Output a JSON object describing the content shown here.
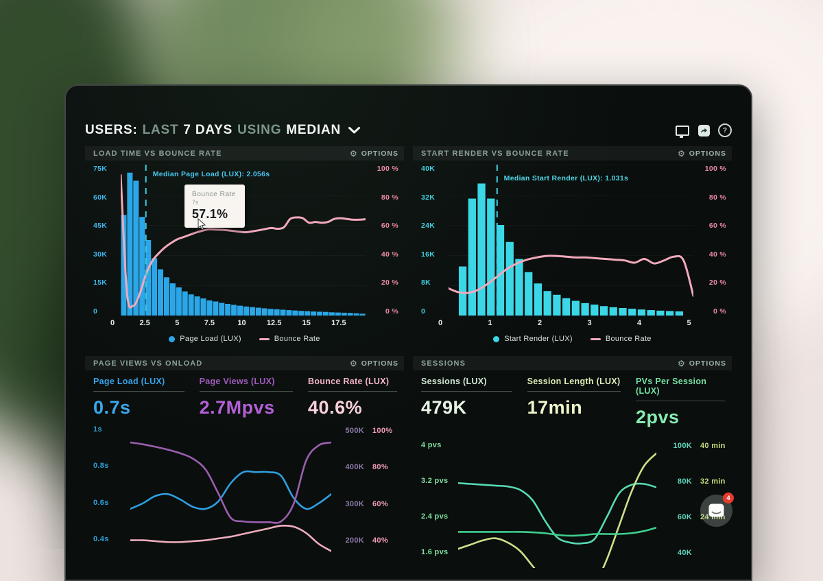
{
  "header": {
    "segments": [
      "USERS:",
      "LAST",
      "7 DAYS",
      "USING",
      "MEDIAN"
    ]
  },
  "ui": {
    "gear_glyph": "⚙",
    "help_glyph": "?"
  },
  "widgets": {
    "chat_badge": "4"
  },
  "panels": [
    {
      "title": "LOAD TIME VS BOUNCE RATE",
      "options": "OPTIONS"
    },
    {
      "title": "START RENDER VS BOUNCE RATE",
      "options": "OPTIONS"
    },
    {
      "title": "PAGE VIEWS VS ONLOAD",
      "options": "OPTIONS",
      "metrics": [
        {
          "label": "Page Load (LUX)",
          "value": "0.7s",
          "label_color": "#37a3e8",
          "value_color": "#39a8ec"
        },
        {
          "label": "Page Views (LUX)",
          "value": "2.7Mpvs",
          "label_color": "#a05bbc",
          "value_color": "#b35fd6"
        },
        {
          "label": "Bounce Rate (LUX)",
          "value": "40.6%",
          "label_color": "#f2b3c5",
          "value_color": "#f8d0da"
        }
      ]
    },
    {
      "title": "SESSIONS",
      "options": "OPTIONS",
      "metrics": [
        {
          "label": "Sessions (LUX)",
          "value": "479K",
          "label_color": "#cfe7d2",
          "value_color": "#e7f4e3"
        },
        {
          "label": "Session Length (LUX)",
          "value": "17min",
          "label_color": "#dcedb6",
          "value_color": "#eff7ca"
        },
        {
          "label": "PVs Per Session (LUX)",
          "value": "2pvs",
          "label_color": "#74e0a2",
          "value_color": "#87eab0"
        }
      ]
    }
  ],
  "chart_data": [
    {
      "type": "combo_bar_line",
      "title": "LOAD TIME VS BOUNCE RATE",
      "xlim": [
        0,
        20
      ],
      "x_ticks": [
        {
          "v": 0,
          "label": "0"
        },
        {
          "v": 2.5,
          "label": "2.5"
        },
        {
          "v": 5,
          "label": "5"
        },
        {
          "v": 7.5,
          "label": "7.5"
        },
        {
          "v": 10,
          "label": "10"
        },
        {
          "v": 12.5,
          "label": "12.5"
        },
        {
          "v": 15,
          "label": "15"
        },
        {
          "v": 17.5,
          "label": "17.5"
        }
      ],
      "left_axis": {
        "ticks": [
          "75K",
          "60K",
          "45K",
          "30K",
          "15K",
          "0"
        ],
        "max_k": 75,
        "color": "#3db4ea"
      },
      "right_axis": {
        "ticks": [
          "100 %",
          "80 %",
          "60 %",
          "40 %",
          "20 %",
          "0 %"
        ],
        "range": [
          0,
          100
        ],
        "color": "#ef8ba6"
      },
      "bars": {
        "name": "Page Load (LUX)",
        "color": "#2ba7e8",
        "x_start": 0,
        "bin_width": 0.5,
        "gap": 0.1,
        "values_k": [
          50,
          71,
          67,
          49,
          37.5,
          28.5,
          23,
          19,
          16,
          14,
          12,
          10.5,
          9.5,
          8.5,
          7.5,
          7,
          6.3,
          5.8,
          5.3,
          4.9,
          4.5,
          4.2,
          3.9,
          3.6,
          3.3,
          3.1,
          2.9,
          2.7,
          2.5,
          2.3,
          2.2,
          2,
          1.9,
          1.8,
          1.6,
          1.5,
          1.4,
          1.3,
          1.1,
          0.9
        ]
      },
      "line": {
        "name": "Bounce Rate",
        "color": "#f2a9bc",
        "width": 3,
        "range": [
          0,
          100
        ],
        "values": [
          93,
          15,
          6.5,
          14,
          27,
          36,
          41,
          45,
          48,
          50.5,
          52,
          53.5,
          55,
          56.2,
          57.1,
          57,
          56.8,
          56.5,
          56,
          55.5,
          55.2,
          55.8,
          56.5,
          57.3,
          58,
          57.5,
          58.5,
          64,
          65,
          64.5,
          61.5,
          62,
          61.5,
          62,
          64,
          64.5,
          64,
          63.5,
          63.5,
          63.8
        ]
      },
      "median_marker": {
        "label": "Median Page Load (LUX): 2.056s",
        "value": 2.056,
        "color": "#3fd0e8"
      },
      "tooltip": {
        "series": "Bounce Rate",
        "x": "7s",
        "value": "57.1%"
      },
      "legend": [
        {
          "label": "Page Load (LUX)",
          "color": "#2ba7e8",
          "shape": "dot"
        },
        {
          "label": "Bounce Rate",
          "color": "#f2a9bc",
          "shape": "line"
        }
      ]
    },
    {
      "type": "combo_bar_line",
      "title": "START RENDER VS BOUNCE RATE",
      "xlim": [
        0,
        5.2
      ],
      "x_ticks": [
        {
          "v": 0,
          "label": "0"
        },
        {
          "v": 1,
          "label": "1"
        },
        {
          "v": 2,
          "label": "2"
        },
        {
          "v": 3,
          "label": "3"
        },
        {
          "v": 4,
          "label": "4"
        },
        {
          "v": 5,
          "label": "5"
        }
      ],
      "left_axis": {
        "ticks": [
          "40K",
          "32K",
          "24K",
          "16K",
          "8K",
          "0"
        ],
        "max_k": 40,
        "color": "#3fd0e0"
      },
      "right_axis": {
        "ticks": [
          "100 %",
          "80 %",
          "60 %",
          "40 %",
          "20 %",
          "0 %"
        ],
        "range": [
          0,
          100
        ],
        "color": "#ef8ba6"
      },
      "bars": {
        "name": "Start Render (LUX)",
        "color": "#3cd7e6",
        "x_start": 0.2,
        "bin_width": 0.2,
        "gap": 0.18,
        "values_k": [
          13,
          31,
          35,
          31,
          24,
          19.5,
          15,
          11.5,
          8.5,
          6.5,
          5.5,
          4.6,
          3.9,
          3.3,
          2.9,
          2.5,
          2.2,
          2,
          1.8,
          1.6,
          1.45,
          1.3,
          1.2,
          1.1
        ]
      },
      "line": {
        "name": "Bounce Rate",
        "color": "#f2a9bc",
        "width": 3,
        "range": [
          0,
          100
        ],
        "values": [
          18,
          15.5,
          15,
          17,
          21,
          26,
          31,
          34.5,
          37,
          38.5,
          39.5,
          39.5,
          39,
          38.5,
          38.5,
          38,
          37.5,
          37,
          36.5,
          35,
          37.5,
          34.5,
          36.5,
          39,
          36.5,
          13
        ]
      },
      "median_marker": {
        "label": "Median Start Render (LUX): 1.031s",
        "value": 1.031,
        "color": "#3fd0e8"
      },
      "legend": [
        {
          "label": "Start Render (LUX)",
          "color": "#3cd7e6",
          "shape": "dot"
        },
        {
          "label": "Bounce Rate",
          "color": "#f2a9bc",
          "shape": "line"
        }
      ]
    },
    {
      "type": "line",
      "title": "PAGE VIEWS VS ONLOAD",
      "left_axis": {
        "ticks": [
          "1s",
          "0.8s",
          "0.6s",
          "0.4s"
        ],
        "color": "#2f9fd8"
      },
      "right_axis": {
        "ticks": [
          [
            "500K",
            "100%"
          ],
          [
            "400K",
            "80%"
          ],
          [
            "300K",
            "60%"
          ],
          [
            "200K",
            "40%"
          ]
        ],
        "k_color": "#8d7aa8",
        "p_color": "#ef9cb6"
      },
      "series": [
        {
          "name": "Page Load (LUX)",
          "unit": "s",
          "color": "#2f9fe0",
          "width": 2.6,
          "range": [
            0.33,
            1.07
          ],
          "values": [
            0.6,
            0.63,
            0.67,
            0.68,
            0.65,
            0.61,
            0.6,
            0.64,
            0.74,
            0.8,
            0.8,
            0.8,
            0.78,
            0.66,
            0.6,
            0.63,
            0.68
          ]
        },
        {
          "name": "Page Views (LUX)",
          "unit": "K pvs",
          "color": "#9a5fae",
          "width": 2.6,
          "range": [
            150,
            525
          ],
          "values": [
            470,
            465,
            458,
            450,
            440,
            425,
            395,
            330,
            262,
            252,
            250,
            250,
            252,
            300,
            420,
            462,
            470
          ]
        },
        {
          "name": "Bounce Rate (LUX)",
          "unit": "%",
          "color": "#eeadbd",
          "width": 2.6,
          "range": [
            30,
            105
          ],
          "values": [
            40,
            40,
            39.5,
            39,
            39,
            39.5,
            40,
            41,
            42,
            43.5,
            45,
            46.5,
            48,
            47.5,
            44,
            38,
            34
          ]
        }
      ]
    },
    {
      "type": "line",
      "title": "SESSIONS",
      "left_axis": {
        "ticks": [
          "4 pvs",
          "3.2 pvs",
          "2.4 pvs",
          "1.6 pvs"
        ],
        "color": "#7fe0a0"
      },
      "right_axis": {
        "ticks": [
          [
            "100K",
            "40 min"
          ],
          [
            "80K",
            "32 min"
          ],
          [
            "60K",
            "24 min"
          ],
          [
            "40K",
            ""
          ]
        ],
        "k_color": "#5fd3ba",
        "p_color": "#c6e07e"
      },
      "series": [
        {
          "name": "Sessions (LUX)",
          "unit": "K",
          "color": "#57d9b4",
          "width": 2.6,
          "range": [
            30,
            110
          ],
          "values": [
            80,
            79.5,
            79,
            78.5,
            78,
            76,
            70,
            58,
            48,
            45,
            44.5,
            47,
            60,
            74,
            79,
            79.5,
            77.5
          ]
        },
        {
          "name": "Session Length (LUX)",
          "unit": "min",
          "color": "#cfe08a",
          "width": 2.6,
          "range": [
            12,
            44
          ],
          "values": [
            16.5,
            17.5,
            18.5,
            19,
            18,
            16,
            12.5,
            9,
            6.5,
            5.5,
            6,
            8,
            14,
            22,
            30,
            36,
            39
          ]
        },
        {
          "name": "PVs Per Session (LUX)",
          "unit": "pvs",
          "color": "#3ecf8e",
          "width": 2.6,
          "range": [
            1.2,
            4.4
          ],
          "values": [
            2.05,
            2.05,
            2.05,
            2.05,
            2.05,
            2.05,
            2.04,
            2.02,
            1.98,
            1.96,
            1.97,
            2.0,
            2.0,
            2.0,
            2.02,
            2.07,
            2.15
          ]
        }
      ]
    }
  ]
}
